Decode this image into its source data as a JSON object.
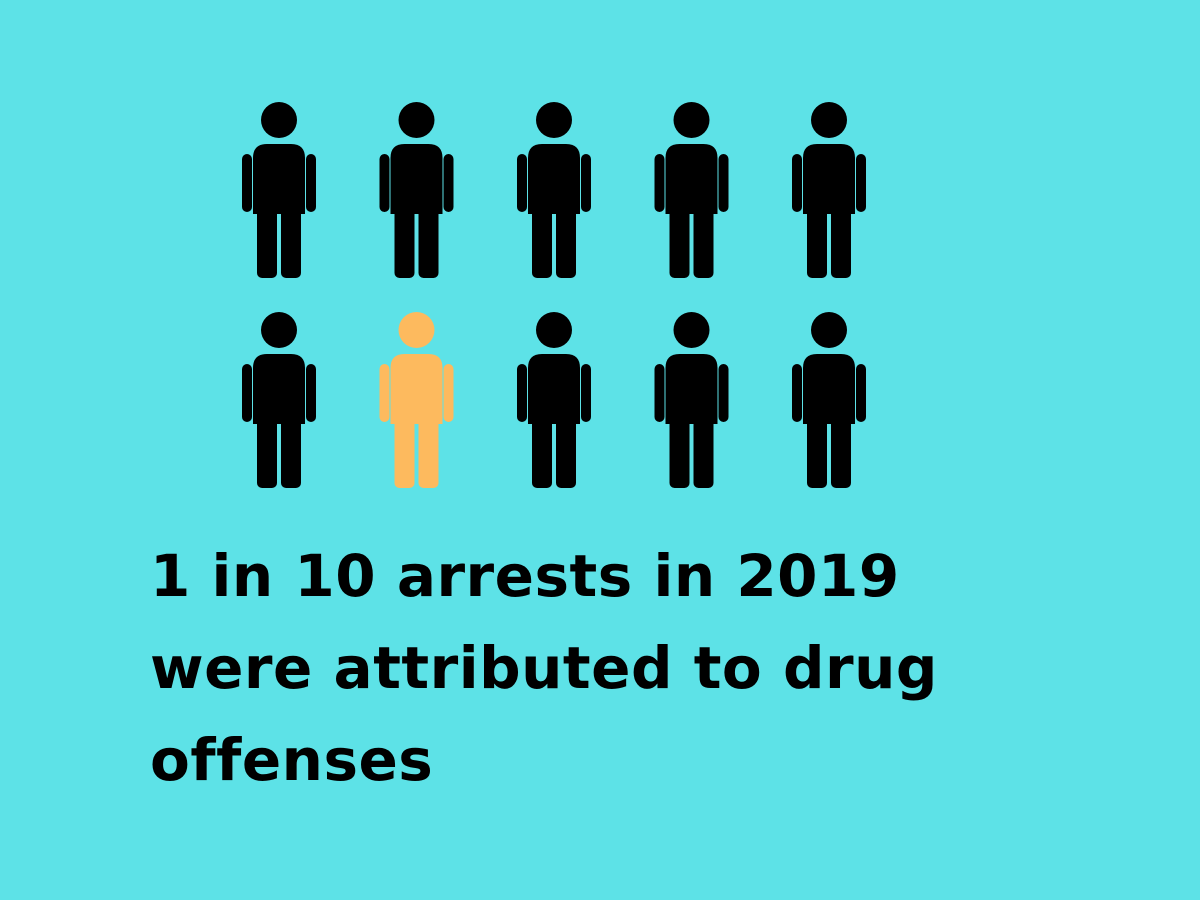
{
  "colors": {
    "background": "#5DE2E7",
    "person": "#000000",
    "highlight": "#FDBA5E",
    "text": "#000000"
  },
  "pictogram": {
    "icon": "person-icon",
    "total": 10,
    "per_row": 5,
    "highlighted_index": 7
  },
  "caption": {
    "lines": [
      "1 in 10 arrests in 2019",
      "were attributed to drug",
      "offenses"
    ]
  }
}
